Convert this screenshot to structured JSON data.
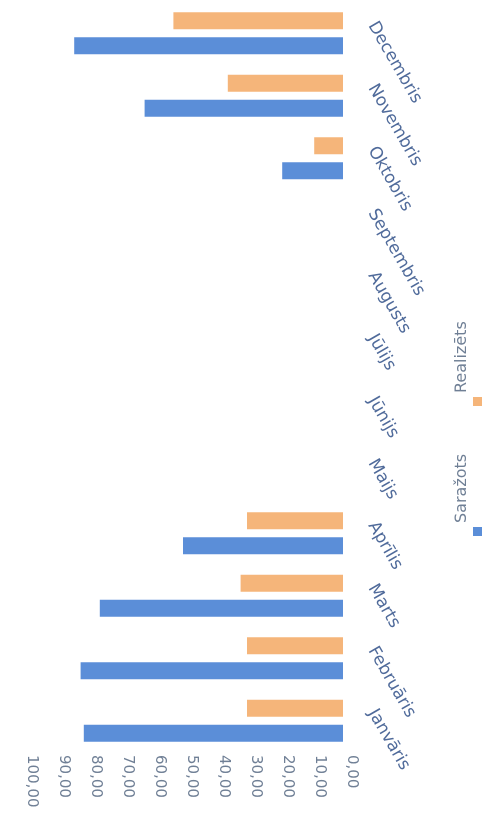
{
  "chart_data": {
    "type": "bar",
    "orientation": "horizontal",
    "rotation": "chart rotated 90° clockwise (value axis runs along the bottom, categories along the right)",
    "categories": [
      "Janvāris",
      "Februāris",
      "Marts",
      "Aprīlis",
      "Maijs",
      "Jūnijs",
      "Jūlijs",
      "Augusts",
      "Septembris",
      "Oktobris",
      "Novembris",
      "Decembris"
    ],
    "series": [
      {
        "name": "Saražots",
        "color": "#5b8ed8",
        "values": [
          81,
          82,
          76,
          50,
          0,
          0,
          0,
          0,
          0,
          19,
          62,
          84
        ]
      },
      {
        "name": "Realizēts",
        "color": "#f5b57a",
        "values": [
          30,
          30,
          32,
          30,
          0,
          0,
          0,
          0,
          0,
          9,
          36,
          53
        ]
      }
    ],
    "ticks": [
      "0,00",
      "10,00",
      "20,00",
      "30,00",
      "40,00",
      "50,00",
      "60,00",
      "70,00",
      "80,00",
      "90,00",
      "100,00"
    ],
    "ylim": [
      0,
      100
    ],
    "title": "",
    "xlabel": "",
    "ylabel": "",
    "legend": "bottom",
    "grid": false
  }
}
